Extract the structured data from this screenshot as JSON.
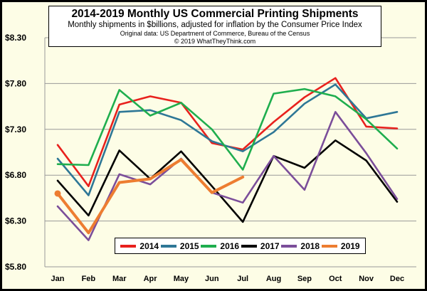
{
  "header": {
    "title": "2014-2019 Monthly US Commercial Printing Shipments",
    "subtitle": "Monthly shipments in $billions, adjusted for inflation by the Consumer Price Index",
    "source": "Original data: US Department of Commerce, Bureau of the Census",
    "copyright": "© 2019 WhatTheyThink.com"
  },
  "colors": {
    "background": "#fdfde6",
    "grid": "#999999"
  },
  "chart_data": {
    "type": "line",
    "title": "2014-2019 Monthly US Commercial Printing Shipments",
    "subtitle": "Monthly shipments in $billions, adjusted for inflation by the Consumer Price Index",
    "categories": [
      "Jan",
      "Feb",
      "Mar",
      "Apr",
      "May",
      "Jun",
      "Jul",
      "Aug",
      "Sep",
      "Oct",
      "Nov",
      "Dec"
    ],
    "ylim": [
      5.8,
      8.3
    ],
    "yticks": [
      "$5.80",
      "$6.30",
      "$6.80",
      "$7.30",
      "$7.80",
      "$8.30"
    ],
    "ytick_values": [
      5.8,
      6.3,
      6.8,
      7.3,
      7.8,
      8.3
    ],
    "grid": true,
    "legend_position": "bottom",
    "series": [
      {
        "name": "2014",
        "color": "#e8211d",
        "values": [
          7.13,
          6.68,
          7.57,
          7.66,
          7.59,
          7.15,
          7.08,
          7.38,
          7.65,
          7.86,
          7.33,
          7.31
        ]
      },
      {
        "name": "2015",
        "color": "#2e7796",
        "values": [
          6.98,
          6.58,
          7.49,
          7.51,
          7.4,
          7.17,
          7.06,
          7.27,
          7.58,
          7.79,
          7.42,
          7.49
        ]
      },
      {
        "name": "2016",
        "color": "#1fae4e",
        "values": [
          6.92,
          6.91,
          7.73,
          7.45,
          7.59,
          7.3,
          6.86,
          7.69,
          7.74,
          7.66,
          7.41,
          7.09
        ]
      },
      {
        "name": "2017",
        "color": "#000000",
        "values": [
          6.74,
          6.36,
          7.07,
          6.76,
          7.06,
          6.68,
          6.29,
          7.01,
          6.88,
          7.18,
          6.96,
          6.51
        ]
      },
      {
        "name": "2018",
        "color": "#7b4e9a",
        "values": [
          6.46,
          6.09,
          6.81,
          6.7,
          6.98,
          6.61,
          6.5,
          7.01,
          6.64,
          7.49,
          7.04,
          6.54
        ]
      },
      {
        "name": "2019",
        "color": "#ed7d31",
        "values": [
          6.6,
          6.17,
          6.72,
          6.76,
          6.97,
          6.61,
          6.78,
          null,
          null,
          null,
          null,
          null
        ],
        "start_marker": true
      }
    ]
  }
}
